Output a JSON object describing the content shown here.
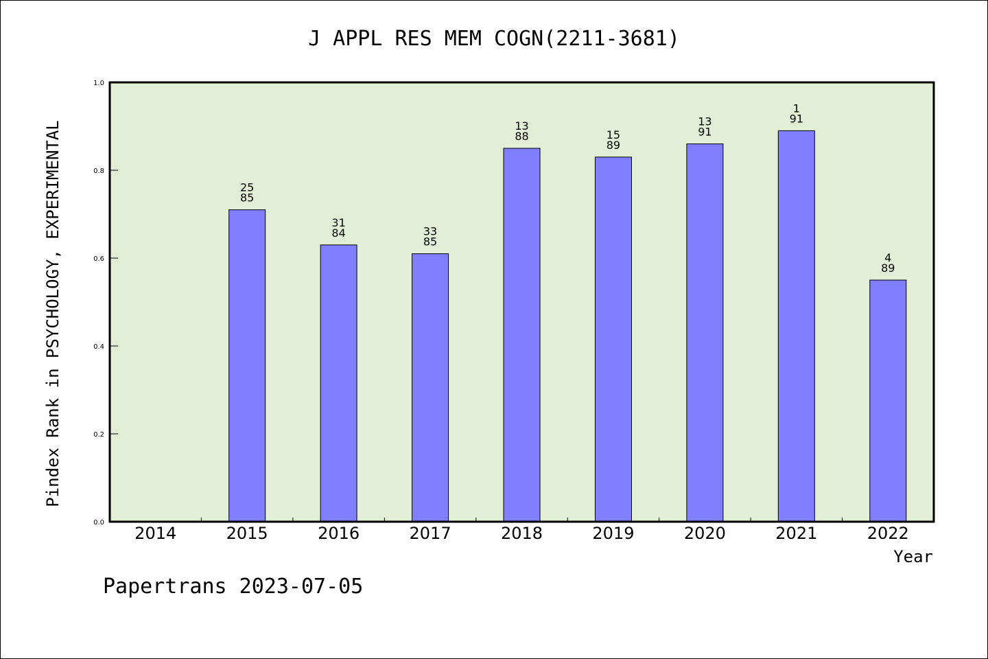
{
  "chart_data": {
    "type": "bar",
    "title": "J APPL RES MEM COGN(2211-3681)",
    "xlabel": "Year",
    "ylabel": "Pindex Rank in PSYCHOLOGY, EXPERIMENTAL",
    "categories": [
      "2014",
      "2015",
      "2016",
      "2017",
      "2018",
      "2019",
      "2020",
      "2021",
      "2022"
    ],
    "values": [
      null,
      0.71,
      0.63,
      0.61,
      0.85,
      0.83,
      0.86,
      0.89,
      0.55
    ],
    "bar_labels": [
      null,
      [
        "25",
        "85"
      ],
      [
        "31",
        "84"
      ],
      [
        "33",
        "85"
      ],
      [
        "13",
        "88"
      ],
      [
        "15",
        "89"
      ],
      [
        "13",
        "91"
      ],
      [
        "1",
        "91"
      ],
      [
        "4",
        "89"
      ]
    ],
    "ylim": [
      0,
      1.0
    ],
    "yticks": [
      "0.0",
      "0.2",
      "0.4",
      "0.6",
      "0.8",
      "1.0"
    ],
    "grid": false,
    "colors": {
      "bar": "#8080ff",
      "plot_bg": "#e2efd6"
    }
  },
  "footer": "Papertrans 2023-07-05"
}
